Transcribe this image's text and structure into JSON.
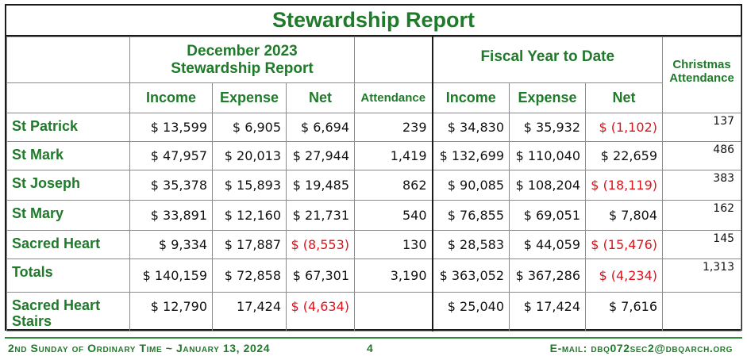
{
  "report": {
    "title": "Stewardship Report",
    "group_month_line1": "December 2023",
    "group_month_line2": "Stewardship Report",
    "group_fiscal": "Fiscal Year to Date",
    "christmas_line1": "Christmas",
    "christmas_line2": "Attendance",
    "columns": {
      "income": "Income",
      "expense": "Expense",
      "net": "Net",
      "attendance": "Attendance",
      "fy_income": "Income",
      "fy_expense": "Expense",
      "fy_net": "Net"
    },
    "rows": [
      {
        "name": "St Patrick",
        "income": "$ 13,599",
        "expense": "$ 6,905",
        "net": "$ 6,694",
        "attendance": "239",
        "fy_income": "$ 34,830",
        "fy_expense": "$ 35,932",
        "fy_net": "$ (1,102)",
        "christmas": "137"
      },
      {
        "name": "St Mark",
        "income": "$ 47,957",
        "expense": "$ 20,013",
        "net": "$ 27,944",
        "attendance": "1,419",
        "fy_income": "$ 132,699",
        "fy_expense": "$ 110,040",
        "fy_net": "$ 22,659",
        "christmas": "486"
      },
      {
        "name": "St Joseph",
        "income": "$ 35,378",
        "expense": "$ 15,893",
        "net": "$ 19,485",
        "attendance": "862",
        "fy_income": "$ 90,085",
        "fy_expense": "$ 108,204",
        "fy_net": "$ (18,119)",
        "christmas": "383"
      },
      {
        "name": "St Mary",
        "income": "$ 33,891",
        "expense": "$ 12,160",
        "net": "$ 21,731",
        "attendance": "540",
        "fy_income": "$ 76,855",
        "fy_expense": "$ 69,051",
        "fy_net": "$ 7,804",
        "christmas": "162"
      },
      {
        "name": "Sacred Heart",
        "income": "$ 9,334",
        "expense": "$ 17,887",
        "net": "$ (8,553)",
        "attendance": "130",
        "fy_income": "$ 28,583",
        "fy_expense": "$ 44,059",
        "fy_net": "$ (15,476)",
        "christmas": "145"
      },
      {
        "name": "Totals",
        "income": "$ 140,159",
        "expense": "$ 72,858",
        "net": "$ 67,301",
        "attendance": "3,190",
        "fy_income": "$ 363,052",
        "fy_expense": "$ 367,286",
        "fy_net": "$ (4,234)",
        "christmas": "1,313"
      },
      {
        "name_line1": "Sacred Heart",
        "name_line2": "Stairs",
        "income": "$ 12,790",
        "expense": "17,424",
        "net": "$ (4,634)",
        "attendance": "",
        "fy_income": "$ 25,040",
        "fy_expense": "$ 17,424",
        "fy_net": "$ 7,616",
        "christmas": ""
      }
    ]
  },
  "footer": {
    "left": "2nd Sunday of Ordinary Time ~ January 13, 2024",
    "page": "4",
    "email": "E-mail: dbq072sec2@dbqarch.org"
  },
  "colors": {
    "accent_green": "#1f7a2a",
    "negative_red": "#e0121b",
    "border": "#1a1a1a"
  }
}
